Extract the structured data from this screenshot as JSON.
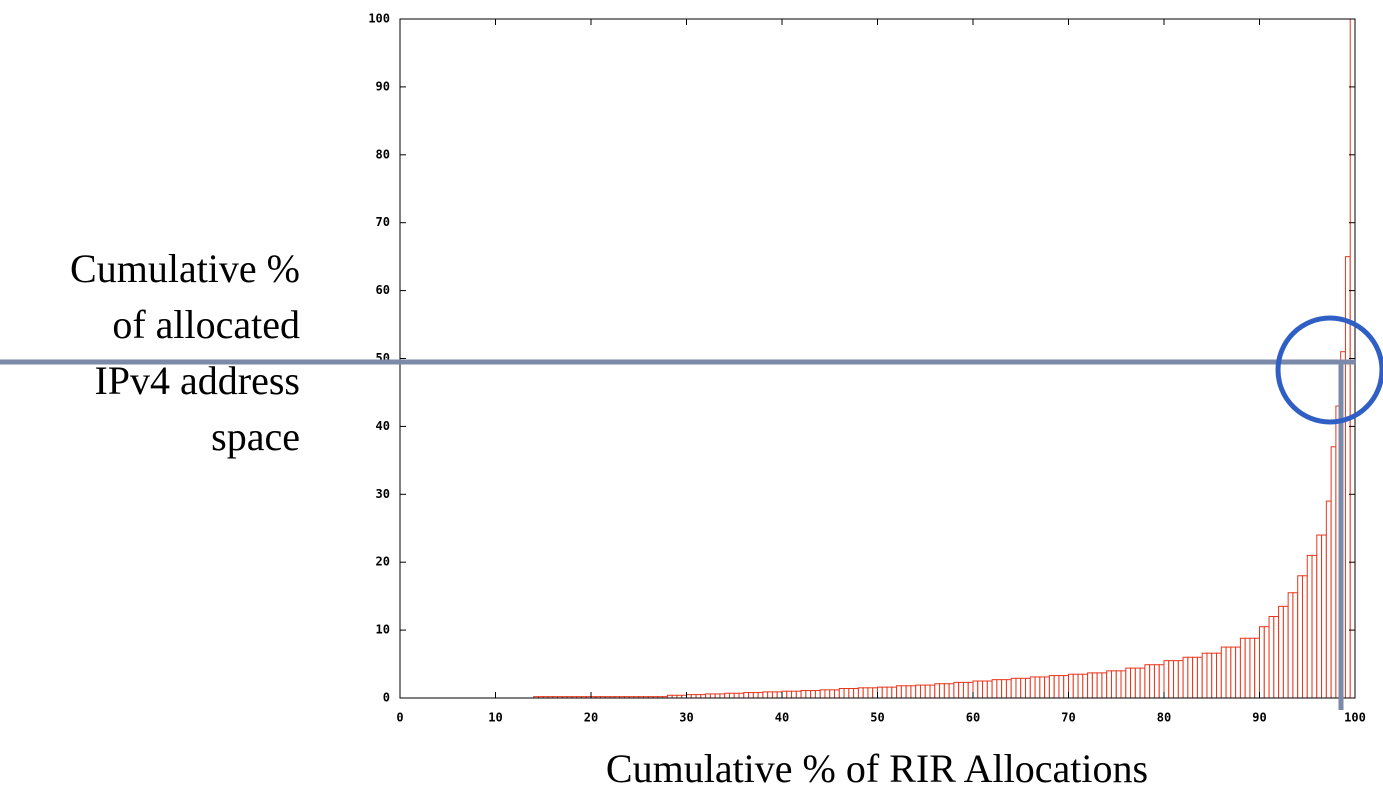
{
  "chart_data": {
    "type": "histogram",
    "ylabel": [
      "Cumulative %",
      "of allocated",
      "IPv4 address",
      "space"
    ],
    "xlabel": "Cumulative % of RIR Allocations",
    "color": "#e8361c",
    "bins": [
      14,
      16,
      18,
      20,
      22,
      24,
      26,
      28,
      30,
      32,
      34,
      36,
      38,
      40,
      42,
      44,
      46,
      48,
      50,
      52,
      54,
      56,
      58,
      60,
      62,
      64,
      66,
      68,
      70,
      72,
      74,
      76,
      78,
      80,
      82,
      84,
      86,
      88,
      90,
      91,
      92,
      93,
      94,
      95,
      96,
      97,
      97.5,
      98,
      98.5,
      99,
      99.5,
      100
    ],
    "counts": [
      0.2,
      0.2,
      0.2,
      0.2,
      0.2,
      0.2,
      0.2,
      0.4,
      0.5,
      0.6,
      0.7,
      0.8,
      0.9,
      1.0,
      1.1,
      1.2,
      1.4,
      1.5,
      1.6,
      1.8,
      1.9,
      2.1,
      2.3,
      2.5,
      2.7,
      2.9,
      3.1,
      3.3,
      3.5,
      3.7,
      4.0,
      4.4,
      4.9,
      5.5,
      6.0,
      6.6,
      7.5,
      8.8,
      10.5,
      12,
      13.5,
      15.5,
      18,
      21,
      24,
      29,
      37,
      43,
      51,
      65,
      100
    ],
    "xlim": [
      0,
      100
    ],
    "xticks": [
      0,
      10,
      20,
      30,
      40,
      50,
      60,
      70,
      80,
      90,
      100
    ],
    "ylim": [
      0,
      100
    ],
    "yticks": [
      0,
      10,
      20,
      30,
      40,
      50,
      60,
      70,
      80,
      90,
      100
    ],
    "grid": false
  }
}
